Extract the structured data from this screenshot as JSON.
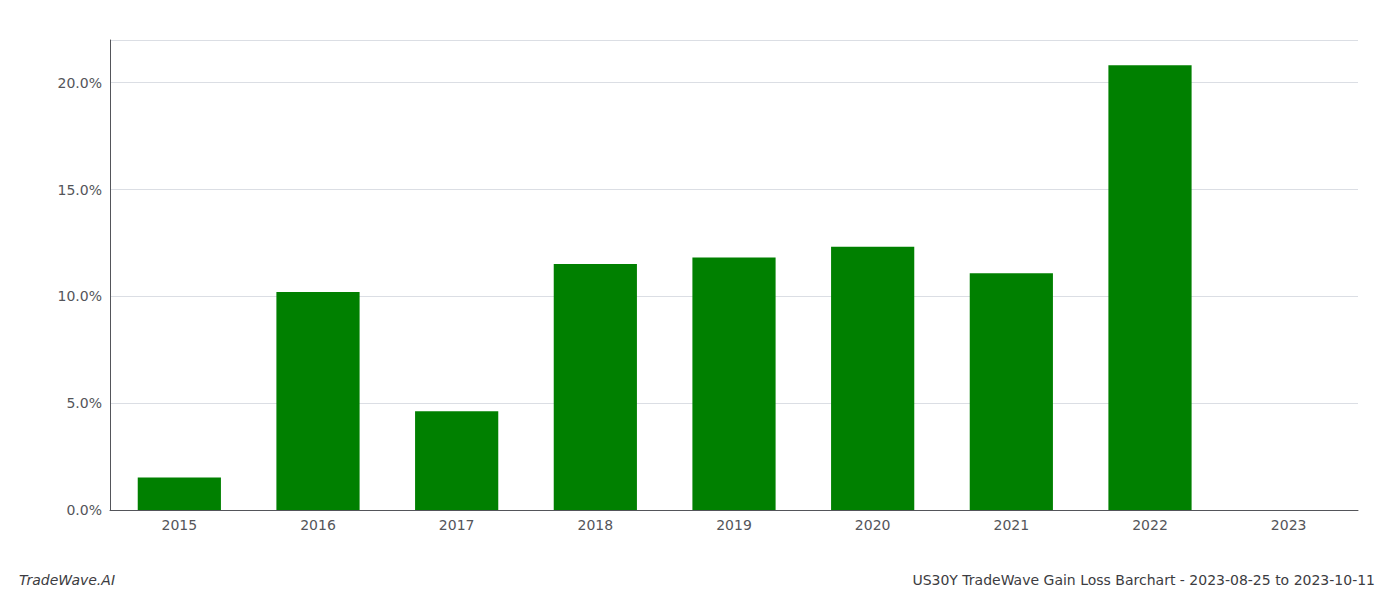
{
  "chart_data": {
    "type": "bar",
    "title": "US30Y TradeWave Gain Loss Barchart - 2023-08-25 to 2023-10-11",
    "annotations": [
      "TradeWave.AI"
    ],
    "categories": [
      "2015",
      "2016",
      "2017",
      "2018",
      "2019",
      "2020",
      "2021",
      "2022",
      "2023"
    ],
    "values": [
      1.52,
      10.2,
      4.62,
      11.52,
      11.82,
      12.32,
      11.08,
      20.82,
      0.0
    ],
    "color": "#008000",
    "ylim": [
      0,
      22
    ],
    "yticks": [
      {
        "value": 0.0,
        "label": "0.0%"
      },
      {
        "value": 5.0,
        "label": "5.0%"
      },
      {
        "value": 10.0,
        "label": "10.0%"
      },
      {
        "value": 15.0,
        "label": "15.0%"
      },
      {
        "value": 20.0,
        "label": "20.0%"
      }
    ],
    "grid": true
  }
}
